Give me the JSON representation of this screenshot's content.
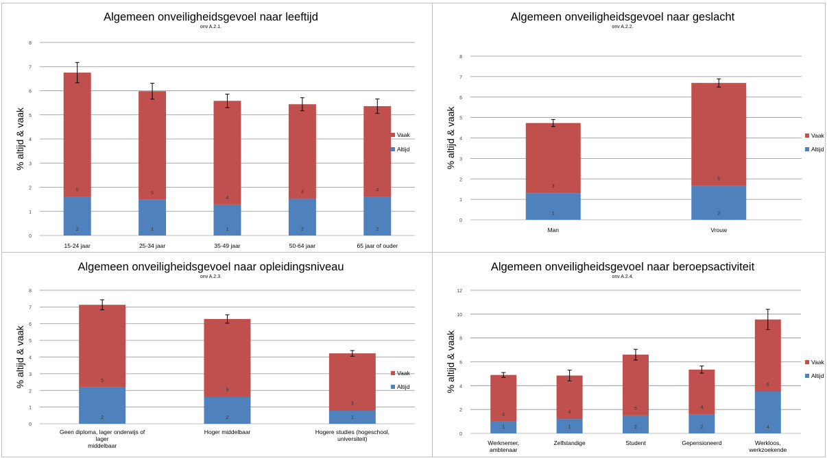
{
  "chart_data": [
    {
      "type": "bar",
      "stacked": true,
      "title": "Algemeen onveiligheidsgevoel naar leeftijd",
      "subtitle": "onv A.2.1.",
      "ylabel": "% altijd & vaak",
      "xlabel": "",
      "ylim": [
        0,
        8
      ],
      "yticks": [
        "0",
        "1",
        "2",
        "3",
        "4",
        "5",
        "6",
        "7",
        "8"
      ],
      "grid": true,
      "legend_position": "right",
      "categories": [
        [
          "15-24 jaar"
        ],
        [
          "25-34 jaar"
        ],
        [
          "35-49 jaar"
        ],
        [
          "50-64 jaar"
        ],
        [
          "65 jaar of ouder"
        ]
      ],
      "series": [
        {
          "name": "Altijd",
          "color": "#4f81bd",
          "values": [
            1.6,
            1.48,
            1.28,
            1.52,
            1.6
          ],
          "labels": [
            "2",
            "1",
            "1",
            "2",
            "2"
          ]
        },
        {
          "name": "Vaak",
          "color": "#c0504d",
          "values": [
            5.15,
            4.5,
            4.3,
            3.92,
            3.76
          ],
          "labels": [
            "5",
            "5",
            "4",
            "4",
            "4"
          ]
        }
      ],
      "error": [
        0.42,
        0.33,
        0.28,
        0.27,
        0.3
      ]
    },
    {
      "type": "bar",
      "stacked": true,
      "title": "Algemeen onveiligheidsgevoel naar geslacht",
      "subtitle": "onv A.2.2.",
      "ylabel": "% altijd & vaak",
      "xlabel": "",
      "ylim": [
        0,
        8
      ],
      "yticks": [
        "0",
        "1",
        "2",
        "3",
        "4",
        "5",
        "6",
        "7",
        "8"
      ],
      "grid": true,
      "legend_position": "right",
      "categories": [
        [
          "Man"
        ],
        [
          "Vrouw"
        ]
      ],
      "series": [
        {
          "name": "Altijd",
          "color": "#4f81bd",
          "values": [
            1.3,
            1.65
          ],
          "labels": [
            "1",
            "2"
          ]
        },
        {
          "name": "Vaak",
          "color": "#c0504d",
          "values": [
            3.43,
            5.04
          ],
          "labels": [
            "3",
            "5"
          ]
        }
      ],
      "error": [
        0.17,
        0.2
      ]
    },
    {
      "type": "bar",
      "stacked": true,
      "title": "Algemeen onveiligheidsgevoel naar opleidingsniveau",
      "subtitle": "onv A.2.3.",
      "ylabel": "% altijd & vaak",
      "xlabel": "",
      "ylim": [
        0,
        8
      ],
      "yticks": [
        "0",
        "1",
        "2",
        "3",
        "4",
        "5",
        "6",
        "7",
        "8"
      ],
      "grid": true,
      "legend_position": "right",
      "categories": [
        [
          "Geen diploma, lager onderwijs of",
          "lager",
          "middelbaar"
        ],
        [
          "Hoger middelbaar"
        ],
        [
          "Hogere studies (hogeschool,",
          "universiteit)"
        ]
      ],
      "series": [
        {
          "name": "Altijd",
          "color": "#4f81bd",
          "values": [
            2.18,
            1.62,
            0.8
          ],
          "labels": [
            "2",
            "2",
            "1"
          ]
        },
        {
          "name": "Vaak",
          "color": "#c0504d",
          "values": [
            4.95,
            4.66,
            3.42
          ],
          "labels": [
            "5",
            "5",
            "3"
          ]
        }
      ],
      "error": [
        0.3,
        0.25,
        0.17
      ]
    },
    {
      "type": "bar",
      "stacked": true,
      "title": "Algemeen onveiligheidsgevoel naar beroepsactiviteit",
      "subtitle": "onv A.2.4.",
      "ylabel": "% altijd & vaak",
      "xlabel": "",
      "ylim": [
        0,
        12
      ],
      "yticks": [
        "0",
        "2",
        "4",
        "6",
        "8",
        "10",
        "12"
      ],
      "grid": true,
      "legend_position": "right",
      "categories": [
        [
          "Werknemer,",
          "ambtenaar"
        ],
        [
          "Zelfstandige"
        ],
        [
          "Student"
        ],
        [
          "Gepensioneerd"
        ],
        [
          "Werkloos,",
          "werkzoekende"
        ]
      ],
      "series": [
        {
          "name": "Altijd",
          "color": "#4f81bd",
          "values": [
            1.0,
            1.2,
            1.5,
            1.6,
            3.5
          ],
          "labels": [
            "1",
            "1",
            "2",
            "2",
            "4"
          ]
        },
        {
          "name": "Vaak",
          "color": "#c0504d",
          "values": [
            3.9,
            3.65,
            5.1,
            3.75,
            6.05
          ],
          "labels": [
            "4",
            "4",
            "5",
            "4",
            "6"
          ]
        }
      ],
      "error": [
        0.2,
        0.45,
        0.45,
        0.3,
        0.85
      ]
    }
  ]
}
